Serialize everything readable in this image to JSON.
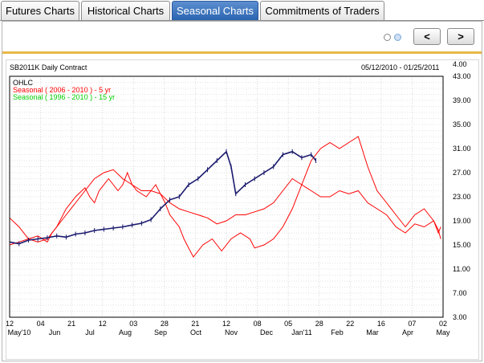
{
  "tabs": [
    {
      "label": "Futures Charts",
      "active": false
    },
    {
      "label": "Historical Charts",
      "active": false
    },
    {
      "label": "Seasonal Charts",
      "active": true
    },
    {
      "label": "Commitments of Traders",
      "active": false
    }
  ],
  "controls": {
    "prev_label": "<",
    "next_label": ">"
  },
  "chart_header": {
    "contract": "SB2011K Daily Contract",
    "date_range": "05/12/2010 - 01/25/2011"
  },
  "legend": {
    "ohlc": "OHLC",
    "seasonal_5yr": "Seasonal ( 2006 - 2010 ) - 5 yr",
    "seasonal_15yr": "Seasonal ( 1996 - 2010 ) - 15 yr"
  },
  "colors": {
    "ohlc": "#1a1a6e",
    "seasonal_5yr": "#ff0000",
    "seasonal_15yr": "#00e000",
    "accent_tab": "#2a64b0"
  },
  "chart_data": {
    "type": "line",
    "title": "SB2011K Daily Contract",
    "y_ticks": [
      "43.00",
      "39.00",
      "35.00",
      "31.00",
      "27.00",
      "23.00",
      "19.00",
      "15.00",
      "11.00",
      "7.00",
      "3.00"
    ],
    "y_top_label": "4.00",
    "ylim": [
      3,
      43
    ],
    "x_day_labels": [
      "12",
      "04",
      "21",
      "12",
      "03",
      "28",
      "21",
      "12",
      "08",
      "05",
      "28",
      "22",
      "16",
      "07",
      "02"
    ],
    "x_month_labels": [
      "May'10",
      "Jun",
      "Jul",
      "Aug",
      "Sep",
      "Oct",
      "Nov",
      "Dec",
      "Jan'11",
      "Feb",
      "Mar",
      "Apr",
      "May"
    ],
    "grid": true,
    "series": [
      {
        "name": "Seasonal ( 2006 - 2010 ) - 5 yr",
        "points": [
          [
            0,
            19.5
          ],
          [
            2,
            18
          ],
          [
            4,
            16
          ],
          [
            6,
            16.5
          ],
          [
            8,
            15.5
          ],
          [
            9,
            17
          ],
          [
            10,
            18
          ],
          [
            12,
            21
          ],
          [
            14,
            23
          ],
          [
            16,
            24.5
          ],
          [
            17,
            23
          ],
          [
            18,
            22
          ],
          [
            19,
            24
          ],
          [
            21,
            26
          ],
          [
            23,
            24
          ],
          [
            24,
            25
          ],
          [
            25,
            27
          ],
          [
            26,
            25
          ],
          [
            27,
            24
          ],
          [
            29,
            23
          ],
          [
            30,
            24
          ],
          [
            31,
            25
          ],
          [
            32,
            23.5
          ],
          [
            33,
            22
          ],
          [
            34,
            20
          ],
          [
            36,
            18
          ],
          [
            37,
            16
          ],
          [
            38,
            14.5
          ],
          [
            39,
            13
          ],
          [
            41,
            15
          ],
          [
            43,
            16
          ],
          [
            45,
            14
          ],
          [
            47,
            16
          ],
          [
            49,
            17
          ],
          [
            51,
            16
          ],
          [
            52,
            14.5
          ],
          [
            54,
            15
          ],
          [
            56,
            16
          ],
          [
            58,
            18
          ],
          [
            60,
            21
          ],
          [
            62,
            25
          ],
          [
            64,
            29
          ],
          [
            66,
            31
          ],
          [
            68,
            32
          ],
          [
            70,
            31
          ],
          [
            72,
            32
          ],
          [
            74,
            33
          ],
          [
            76,
            28
          ],
          [
            78,
            24
          ],
          [
            80,
            22
          ],
          [
            82,
            20
          ],
          [
            84,
            18
          ],
          [
            86,
            20
          ],
          [
            88,
            21
          ],
          [
            89,
            20
          ],
          [
            90,
            19
          ],
          [
            91,
            17
          ],
          [
            91.5,
            18
          ]
        ]
      },
      {
        "name": "Seasonal ( 1996 - 2010 ) - 15 yr",
        "points": [
          [
            0,
            15
          ],
          [
            2,
            15.5
          ],
          [
            4,
            16
          ],
          [
            6,
            15.5
          ],
          [
            8,
            16
          ],
          [
            10,
            18
          ],
          [
            12,
            20
          ],
          [
            14,
            22
          ],
          [
            16,
            24
          ],
          [
            18,
            26
          ],
          [
            20,
            27
          ],
          [
            22,
            27.5
          ],
          [
            24,
            26
          ],
          [
            26,
            25
          ],
          [
            28,
            24
          ],
          [
            30,
            24
          ],
          [
            32,
            23.5
          ],
          [
            34,
            22
          ],
          [
            36,
            21
          ],
          [
            38,
            20.5
          ],
          [
            40,
            20
          ],
          [
            42,
            19.5
          ],
          [
            44,
            18.5
          ],
          [
            46,
            19
          ],
          [
            48,
            20
          ],
          [
            50,
            20
          ],
          [
            52,
            20.5
          ],
          [
            54,
            21
          ],
          [
            56,
            22
          ],
          [
            58,
            24
          ],
          [
            60,
            26
          ],
          [
            62,
            25
          ],
          [
            64,
            24
          ],
          [
            66,
            23
          ],
          [
            68,
            23
          ],
          [
            70,
            24
          ],
          [
            72,
            23.5
          ],
          [
            74,
            24
          ],
          [
            76,
            22
          ],
          [
            78,
            21
          ],
          [
            80,
            20
          ],
          [
            82,
            18
          ],
          [
            84,
            17
          ],
          [
            86,
            18.5
          ],
          [
            88,
            18
          ],
          [
            90,
            19
          ],
          [
            91,
            17.5
          ],
          [
            91.5,
            16
          ]
        ]
      },
      {
        "name": "OHLC",
        "points": [
          [
            0,
            15.5
          ],
          [
            2,
            15.2
          ],
          [
            4,
            15.8
          ],
          [
            6,
            16
          ],
          [
            8,
            16.2
          ],
          [
            10,
            16.5
          ],
          [
            12,
            16.3
          ],
          [
            14,
            16.8
          ],
          [
            16,
            17
          ],
          [
            18,
            17.4
          ],
          [
            20,
            17.6
          ],
          [
            22,
            17.8
          ],
          [
            24,
            18
          ],
          [
            26,
            18.3
          ],
          [
            28,
            18.6
          ],
          [
            30,
            19.2
          ],
          [
            32,
            21
          ],
          [
            34,
            22.5
          ],
          [
            36,
            23
          ],
          [
            38,
            25
          ],
          [
            40,
            26
          ],
          [
            42,
            27.5
          ],
          [
            44,
            29
          ],
          [
            46,
            30.5
          ],
          [
            47,
            28
          ],
          [
            48,
            23.5
          ],
          [
            50,
            25
          ],
          [
            52,
            26
          ],
          [
            54,
            27
          ],
          [
            56,
            28
          ],
          [
            58,
            30
          ],
          [
            60,
            30.5
          ],
          [
            62,
            29.5
          ],
          [
            64,
            30
          ],
          [
            65,
            29
          ]
        ]
      }
    ],
    "x_range": [
      0,
      92
    ]
  }
}
